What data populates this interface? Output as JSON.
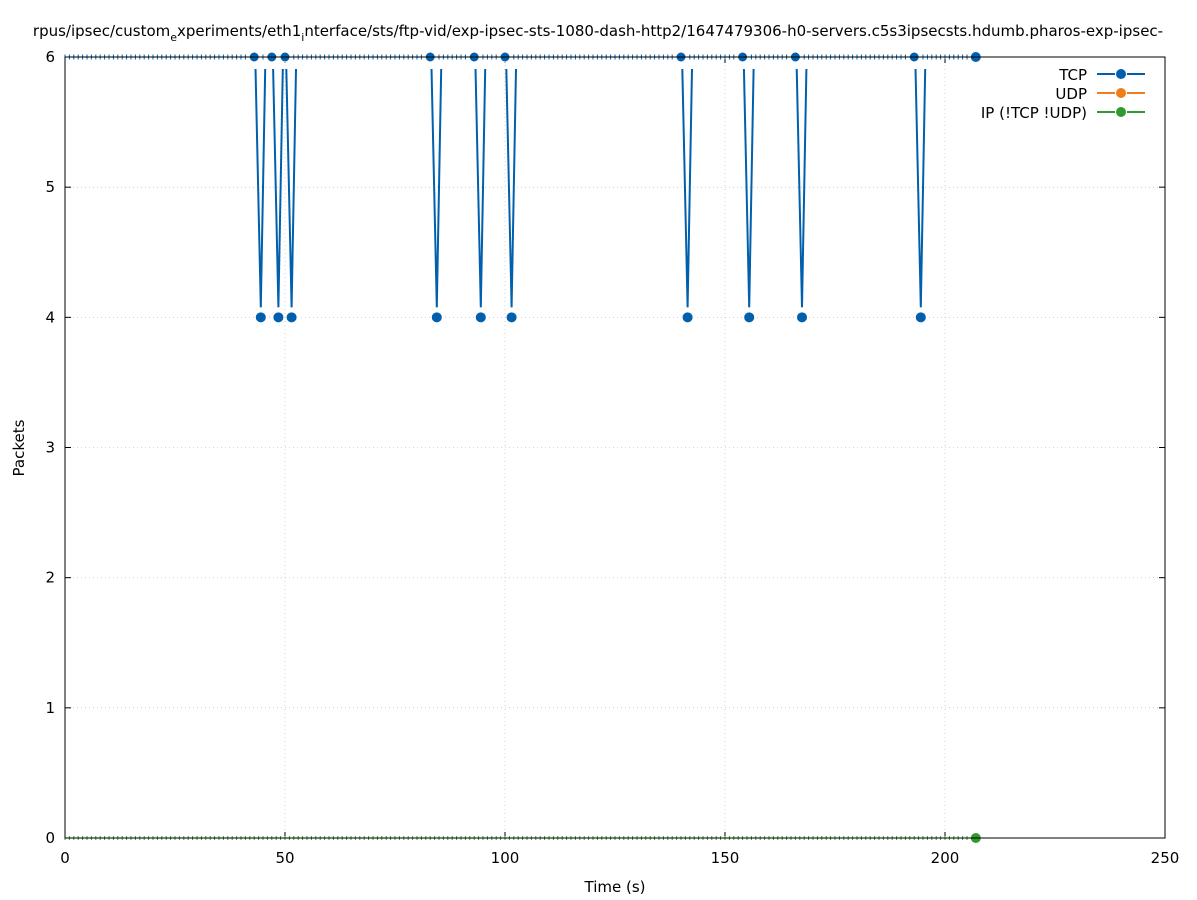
{
  "chart_data": {
    "type": "line",
    "title": "rpus/ipsec/custom_experiments/eth1_interface/sts/ftp-vid/exp-ipsec-sts-1080-dash-http2/1647479306-h0-servers.c5s3ipsecsts.hdumb.pharos-exp-ipsec-",
    "title_parts": {
      "part1": "rpus/ipsec/custom",
      "sub1": "e",
      "part2": "xperiments/eth1",
      "sub2": "i",
      "part3": "nterface/sts/ftp-vid/exp-ipsec-sts-1080-dash-http2/1647479306-h0-servers.c5s3ipsecsts.hdumb.pharos-exp-ipsec-"
    },
    "xlabel": "Time (s)",
    "ylabel": "Packets",
    "xlim": [
      0,
      250
    ],
    "ylim": [
      0,
      6
    ],
    "xticks": [
      0,
      50,
      100,
      150,
      200,
      250
    ],
    "yticks": [
      0,
      1,
      2,
      3,
      4,
      5,
      6
    ],
    "grid": true,
    "legend_position": "top-right",
    "series": [
      {
        "name": "TCP",
        "color": "#0060ad",
        "dip_times": [
          44.5,
          48.5,
          51.5,
          84.5,
          94.5,
          101.5,
          141.5,
          155.5,
          167.5,
          194.5
        ],
        "baseline": 6,
        "dip_value": 4,
        "last_point": [
          207,
          6
        ]
      },
      {
        "name": "UDP",
        "color": "#ef7d1a",
        "points": []
      },
      {
        "name": "IP (!TCP  !UDP)",
        "color": "#2f9a2f",
        "baseline": 0,
        "last_point": [
          207,
          0
        ]
      }
    ]
  }
}
